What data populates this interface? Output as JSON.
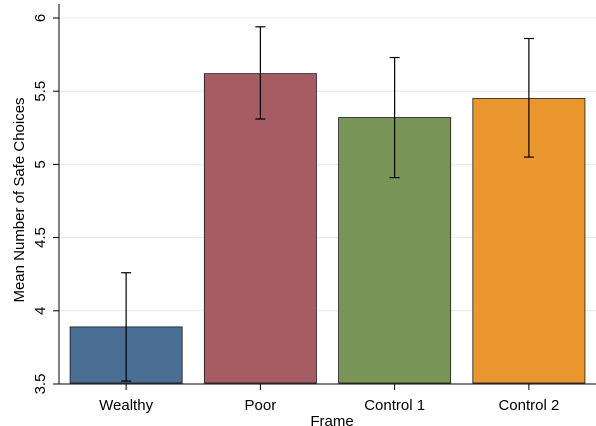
{
  "chart_data": {
    "type": "bar",
    "title": "",
    "xlabel": "Frame",
    "ylabel": "Mean Number of Safe Choices",
    "categories": [
      "Wealthy",
      "Poor",
      "Control 1",
      "Control 2"
    ],
    "values": [
      3.89,
      5.62,
      5.32,
      5.45
    ],
    "error_low": [
      3.52,
      5.31,
      4.91,
      5.05
    ],
    "error_high": [
      4.26,
      5.94,
      5.73,
      5.86
    ],
    "colors": [
      "#4a6e94",
      "#a55d63",
      "#789456",
      "#e9962f"
    ],
    "ylim": [
      3.5,
      6.0
    ],
    "yticks": [
      "3.5",
      "4",
      "4.5",
      "5",
      "5.5",
      "6"
    ],
    "grid": true,
    "legend": "none"
  }
}
